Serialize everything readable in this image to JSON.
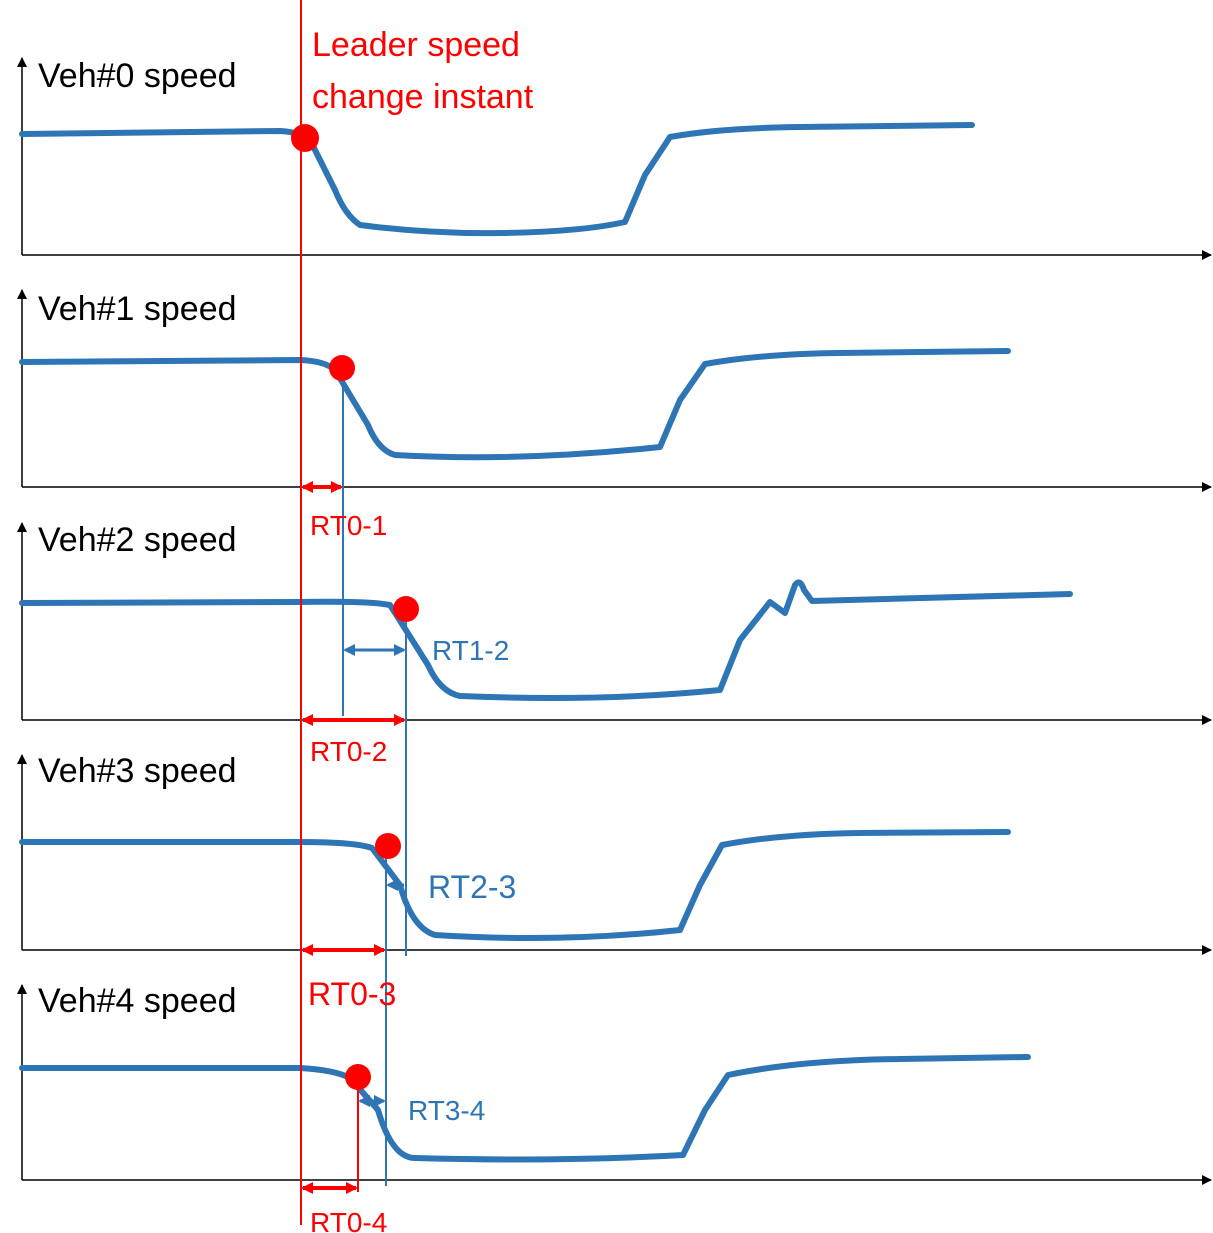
{
  "leader_annotation": [
    "Leader speed",
    "change instant"
  ],
  "panels": [
    "Veh#0 speed",
    "Veh#1 speed",
    "Veh#2 speed",
    "Veh#3 speed",
    "Veh#4 speed"
  ],
  "reaction_times": {
    "leader": [
      "RT0-1",
      "RT0-2",
      "RT0-3",
      "RT0-4"
    ],
    "successive": [
      "RT1-2",
      "RT2-3",
      "RT3-4"
    ]
  }
}
